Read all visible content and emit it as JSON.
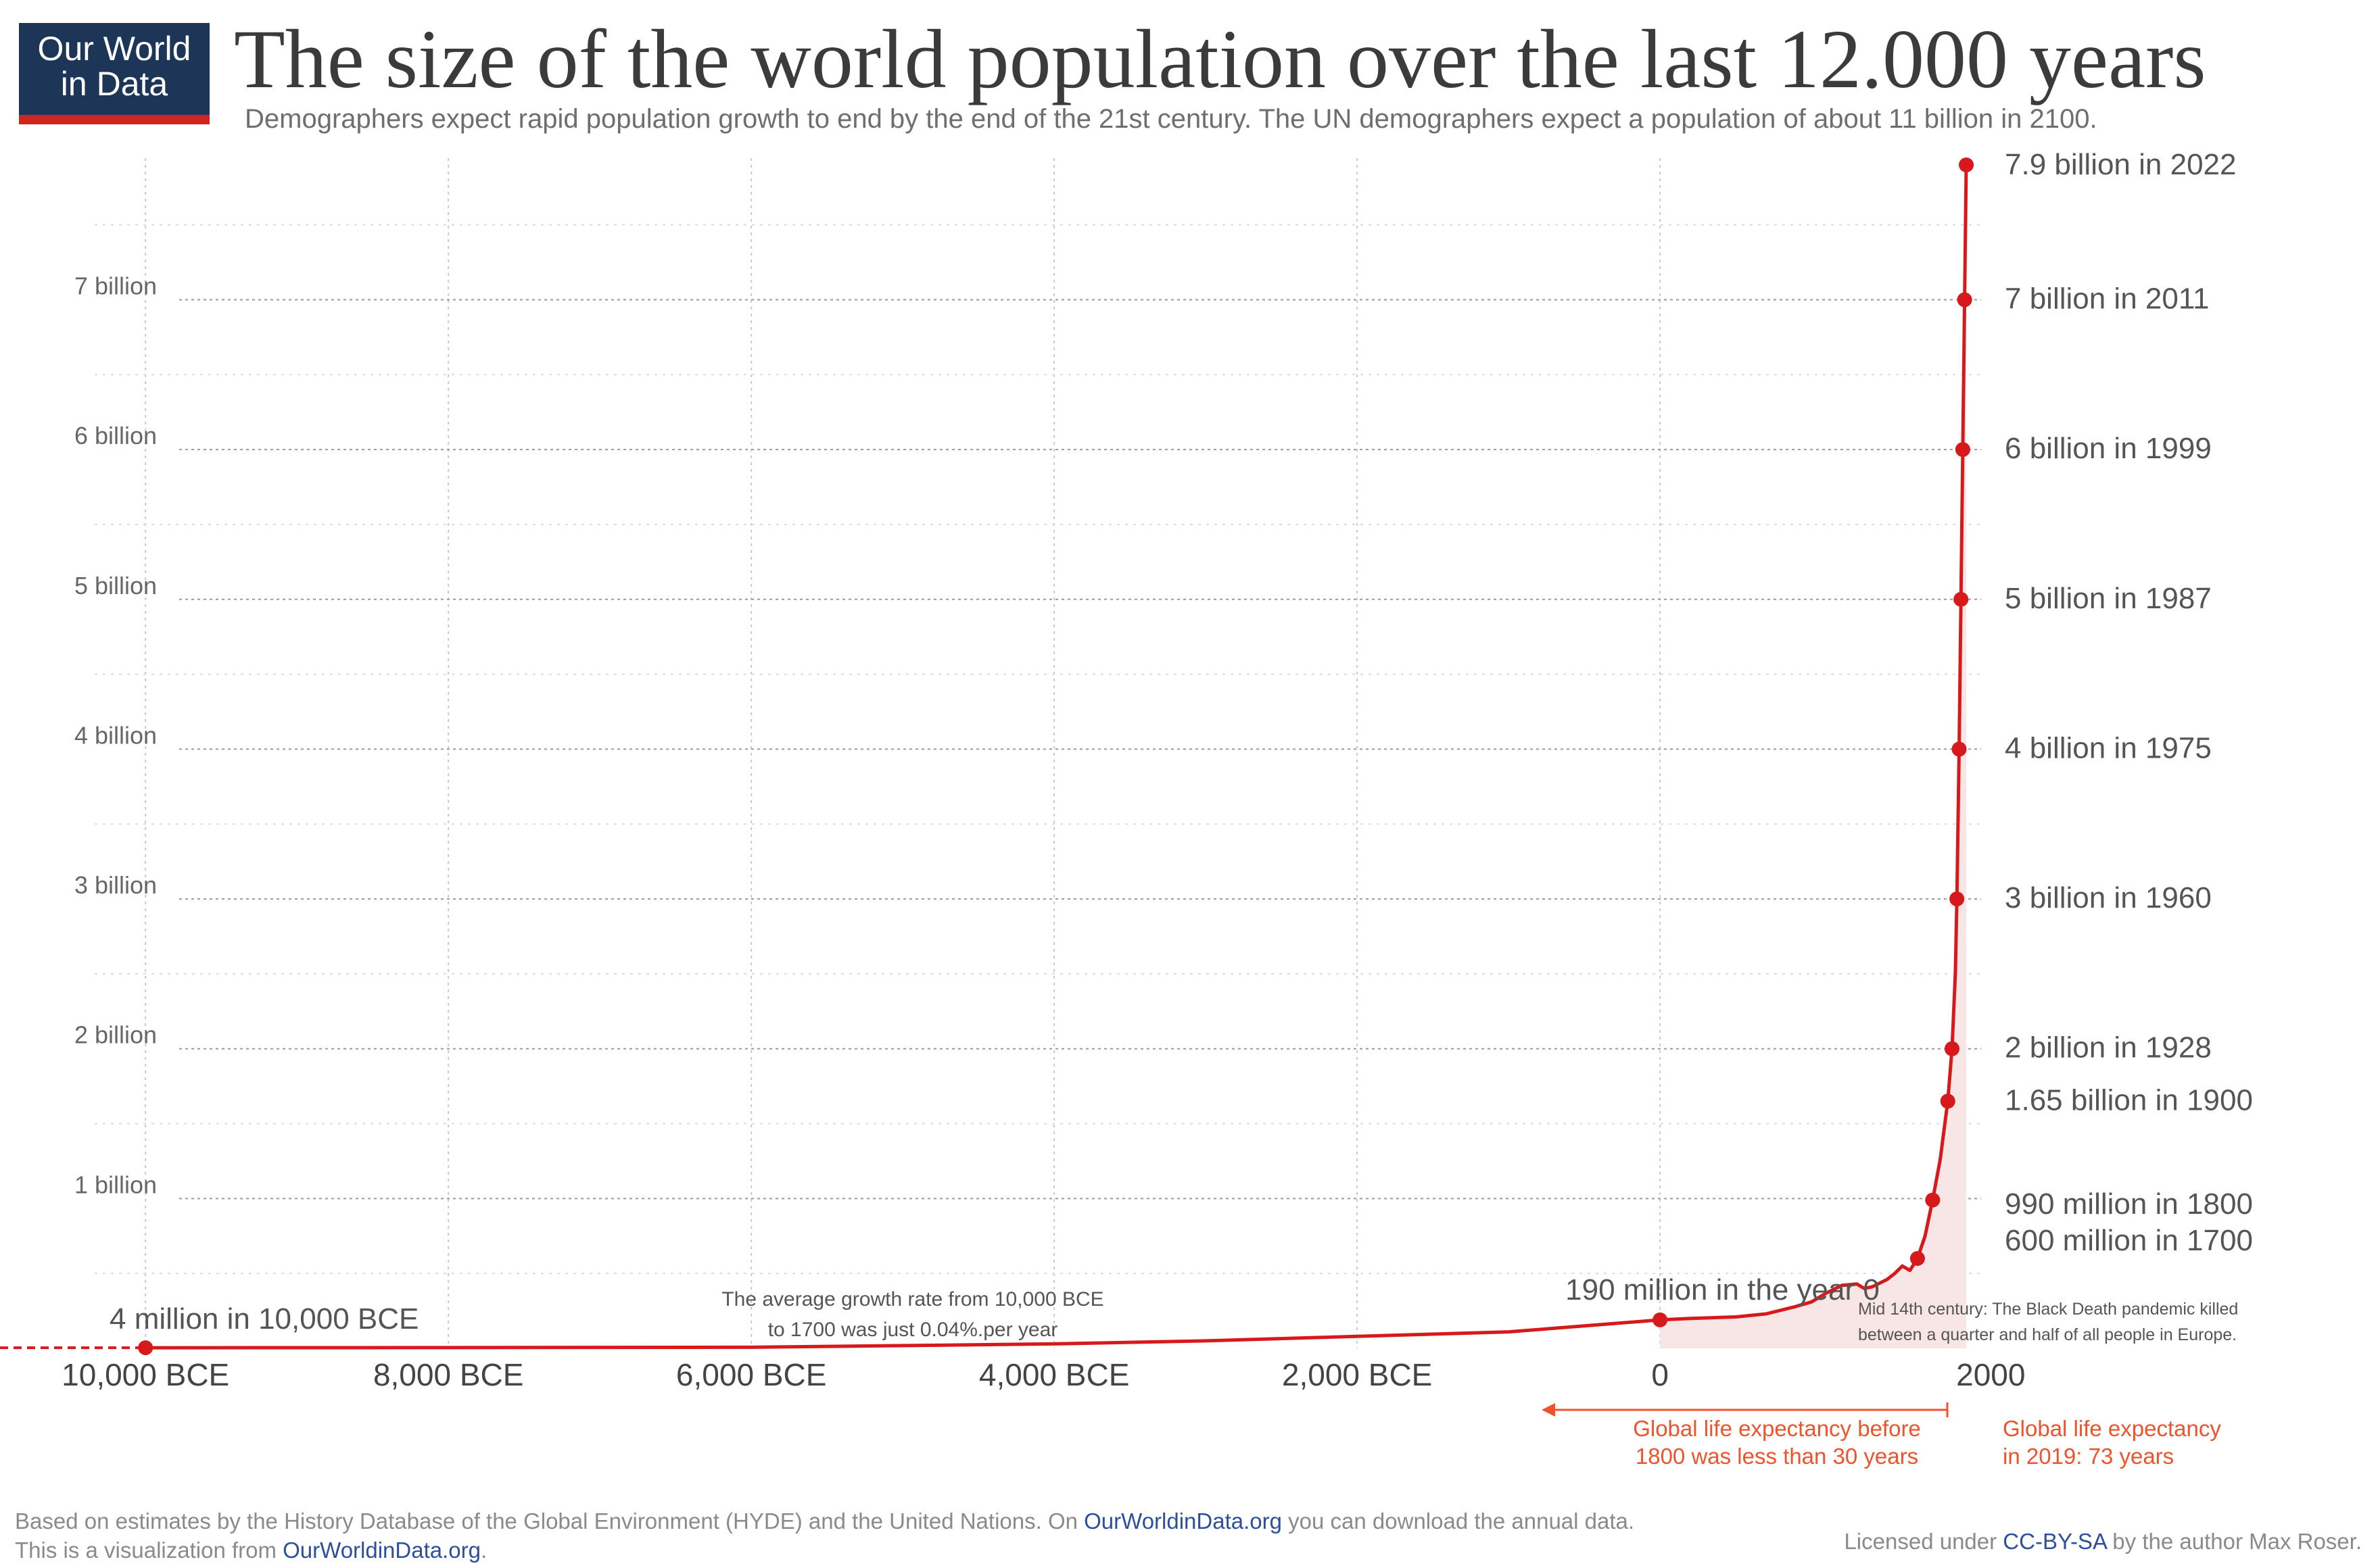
{
  "logo": {
    "line1": "Our World",
    "line2": "in Data"
  },
  "title": "The size of the world population over the last 12.000 years",
  "subtitle": "Demographers expect rapid population growth to end by the end of the 21st century. The UN demographers expect a population of about 11 billion in 2100.",
  "colors": {
    "series": "#d7191c",
    "annotation": "#f0532b",
    "grid": "#c8c8c8",
    "fill": "#f8e6e6",
    "brand": "#1d3557",
    "link": "#2e4e9e"
  },
  "chart_data": {
    "type": "line",
    "xlim": [
      -10300,
      2120
    ],
    "ylim": [
      0,
      7.9
    ],
    "y_unit": "billion",
    "grid": true,
    "x_ticks": [
      {
        "value": -10000,
        "label": "10,000 BCE"
      },
      {
        "value": -8000,
        "label": "8,000 BCE"
      },
      {
        "value": -6000,
        "label": "6,000 BCE"
      },
      {
        "value": -4000,
        "label": "4,000 BCE"
      },
      {
        "value": -2000,
        "label": "2,000 BCE"
      },
      {
        "value": 0,
        "label": "0"
      },
      {
        "value": 2000,
        "label": "2000"
      }
    ],
    "y_ticks": [
      {
        "value": 1,
        "label": "1 billion"
      },
      {
        "value": 2,
        "label": "2 billion"
      },
      {
        "value": 3,
        "label": "3 billion"
      },
      {
        "value": 4,
        "label": "4 billion"
      },
      {
        "value": 5,
        "label": "5 billion"
      },
      {
        "value": 6,
        "label": "6 billion"
      },
      {
        "value": 7,
        "label": "7 billion"
      }
    ],
    "series": [
      {
        "x": [
          -10000,
          -8000,
          -6000,
          -4000,
          -3000,
          -2000,
          -1000,
          -500,
          0,
          200,
          500,
          700,
          900,
          1000,
          1100,
          1200,
          1300,
          1347,
          1400,
          1500,
          1550,
          1600,
          1650,
          1700,
          1750,
          1800,
          1850,
          1900,
          1928,
          1950,
          1960,
          1975,
          1987,
          1999,
          2011,
          2022
        ],
        "y": [
          0.004,
          0.005,
          0.007,
          0.03,
          0.05,
          0.08,
          0.11,
          0.15,
          0.19,
          0.2,
          0.21,
          0.23,
          0.28,
          0.31,
          0.37,
          0.42,
          0.43,
          0.4,
          0.41,
          0.46,
          0.5,
          0.55,
          0.52,
          0.6,
          0.75,
          0.99,
          1.26,
          1.65,
          2.0,
          2.5,
          3.0,
          4.0,
          5.0,
          6.0,
          7.0,
          7.9
        ]
      }
    ],
    "labeled_points": [
      {
        "x": -10000,
        "y": 0.004,
        "label": "4 million in 10,000 BCE"
      },
      {
        "x": 0,
        "y": 0.19,
        "label": "190 million in the year 0"
      },
      {
        "x": 1700,
        "y": 0.6,
        "label": "600 million in 1700"
      },
      {
        "x": 1800,
        "y": 0.99,
        "label": "990 million in 1800"
      },
      {
        "x": 1900,
        "y": 1.65,
        "label": "1.65 billion in 1900"
      },
      {
        "x": 1928,
        "y": 2.0,
        "label": "2 billion in 1928"
      },
      {
        "x": 1960,
        "y": 3.0,
        "label": "3 billion in 1960"
      },
      {
        "x": 1975,
        "y": 4.0,
        "label": "4 billion in 1975"
      },
      {
        "x": 1987,
        "y": 5.0,
        "label": "5 billion in 1987"
      },
      {
        "x": 1999,
        "y": 6.0,
        "label": "6 billion in 1999"
      },
      {
        "x": 2011,
        "y": 7.0,
        "label": "7 billion in 2011"
      },
      {
        "x": 2022,
        "y": 7.9,
        "label": "7.9 billion in 2022"
      }
    ],
    "annotations": {
      "growth_line1": "The average growth rate from 10,000 BCE",
      "growth_line2": "to 1700 was just  0.04%.per year",
      "blackdeath_line1": "Mid 14th century: The Black Death pandemic killed",
      "blackdeath_line2": "between a quarter and half of all people in Europe.",
      "life_before_line1": "Global life expectancy before",
      "life_before_line2": "1800 was less than 30 years",
      "life_2019_line1": "Global life expectancy",
      "life_2019_line2": "in 2019: 73 years"
    }
  },
  "footer": {
    "line1_text": "Based on estimates by the History Database of the Global Environment (HYDE) and the United Nations. On ",
    "line1_link": "OurWorldinData.org",
    "line1_rest": " you can download the annual data.",
    "line2_text": "This is a visualization from ",
    "line2_link": "OurWorldinData.org",
    "line2_rest": ".",
    "license_text": "Licensed under ",
    "license_link": "CC-BY-SA",
    "license_rest": " by the author Max Roser."
  }
}
